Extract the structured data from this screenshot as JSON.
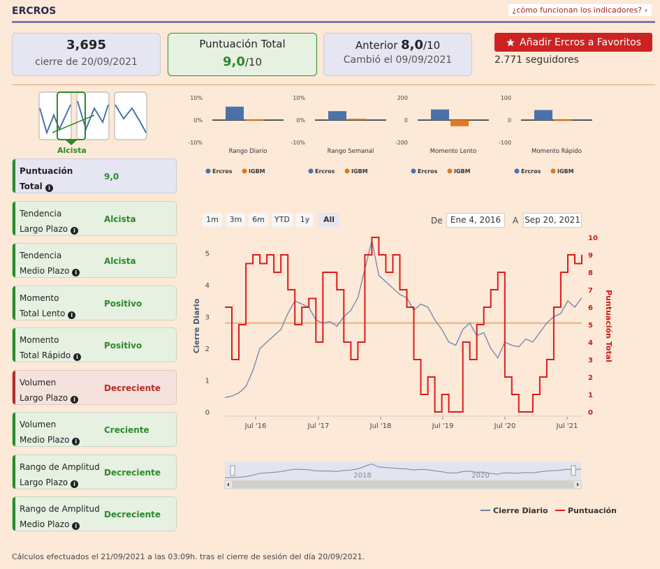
{
  "header": {
    "title": "ERCROS",
    "help_link": "¿cómo funcionan los indicadores? ›"
  },
  "cards": {
    "price": {
      "value": "3,695",
      "sub": "cierre de 20/09/2021"
    },
    "total": {
      "label": "Puntuación Total",
      "score": "9,0",
      "den": "/10"
    },
    "previous": {
      "label": "Anterior ",
      "score": "8,0",
      "den": "/10",
      "sub": "Cambió el 09/09/2021"
    }
  },
  "favorite": {
    "label": "Añadir Ercros a Favoritos",
    "icon": "star-icon",
    "followers": "2.771 seguidores"
  },
  "trend_thumbnail": {
    "label": "Alcista",
    "color": "#2a8a2a"
  },
  "indicators": [
    {
      "line1": "Puntuación",
      "line2": "Total",
      "value": "9,0",
      "style": "total"
    },
    {
      "line1": "Tendencia",
      "line2": "Largo Plazo",
      "value": "Alcista",
      "style": "green"
    },
    {
      "line1": "Tendencia",
      "line2": "Medio Plazo",
      "value": "Alcista",
      "style": "green"
    },
    {
      "line1": "Momento",
      "line2": "Total Lento",
      "value": "Positivo",
      "style": "green"
    },
    {
      "line1": "Momento",
      "line2": "Total Rápido",
      "value": "Positivo",
      "style": "green"
    },
    {
      "line1": "Volumen",
      "line2": "Largo Plazo",
      "value": "Decreciente",
      "style": "red"
    },
    {
      "line1": "Volumen",
      "line2": "Medio Plazo",
      "value": "Creciente",
      "style": "green"
    },
    {
      "line1": "Rango de Amplitud",
      "line2": "Largo Plazo",
      "value": "Decreciente",
      "style": "green"
    },
    {
      "line1": "Rango de Amplitud",
      "line2": "Medio Plazo",
      "value": "Decreciente",
      "style": "green"
    }
  ],
  "chart_data": [
    {
      "type": "bar",
      "title": "Rango Diario",
      "ticks": [
        "10%",
        "0%",
        "-10%"
      ],
      "ylim": [
        -10,
        10
      ],
      "series": [
        {
          "name": "Ercros",
          "values": [
            6
          ],
          "color": "#4a72a8"
        },
        {
          "name": "IGBM",
          "values": [
            0.2
          ],
          "color": "#e07820"
        }
      ]
    },
    {
      "type": "bar",
      "title": "Rango Semanal",
      "ticks": [
        "10%",
        "0%",
        "-10%"
      ],
      "ylim": [
        -10,
        10
      ],
      "series": [
        {
          "name": "Ercros",
          "values": [
            4
          ],
          "color": "#4a72a8"
        },
        {
          "name": "IGBM",
          "values": [
            0.6
          ],
          "color": "#e07820"
        }
      ]
    },
    {
      "type": "bar",
      "title": "Momento Lento",
      "ticks": [
        "200",
        "0",
        "-200"
      ],
      "ylim": [
        -200,
        200
      ],
      "series": [
        {
          "name": "Ercros",
          "values": [
            95
          ],
          "color": "#4a72a8"
        },
        {
          "name": "IGBM",
          "values": [
            -55
          ],
          "color": "#e07820"
        }
      ]
    },
    {
      "type": "bar",
      "title": "Momento Rápido",
      "ticks": [
        "100",
        "0",
        "-100"
      ],
      "ylim": [
        -100,
        100
      ],
      "series": [
        {
          "name": "Ercros",
          "values": [
            45
          ],
          "color": "#4a72a8"
        },
        {
          "name": "IGBM",
          "values": [
            1
          ],
          "color": "#e07820"
        }
      ]
    },
    {
      "type": "line",
      "x_ticks": [
        "Jul '16",
        "Jul '17",
        "Jul '18",
        "Jul '19",
        "Jul '20",
        "Jul '21"
      ],
      "ylabel": "Cierre Diario",
      "y2label": "Puntuación Total",
      "ylim": [
        0,
        5.5
      ],
      "y2lim": [
        0,
        10
      ],
      "y_ticks": [
        "0",
        "1",
        "2",
        "3",
        "4",
        "5"
      ],
      "y2_ticks": [
        "0",
        "1",
        "2",
        "3",
        "4",
        "5",
        "6",
        "7",
        "8",
        "9",
        "10"
      ],
      "reference_line": 2.8,
      "navigator_ticks": [
        "2018",
        "2020"
      ],
      "series": [
        {
          "name": "Cierre Diario",
          "color": "#6b84ab",
          "values": [
            0.45,
            0.5,
            0.6,
            0.8,
            1.3,
            2.0,
            2.2,
            2.4,
            2.6,
            3.1,
            3.5,
            3.4,
            3.3,
            2.9,
            2.8,
            2.85,
            2.7,
            3.0,
            3.2,
            3.6,
            4.5,
            5.4,
            4.3,
            4.1,
            3.9,
            3.7,
            3.6,
            3.2,
            3.4,
            3.3,
            2.9,
            2.6,
            2.2,
            2.1,
            2.6,
            2.8,
            2.4,
            2.5,
            2.0,
            1.7,
            2.2,
            2.1,
            2.05,
            2.3,
            2.2,
            2.5,
            2.8,
            3.0,
            3.1,
            3.5,
            3.3,
            3.6
          ]
        },
        {
          "name": "Puntuación",
          "color": "#dd1a1a",
          "values": [
            6,
            3,
            5,
            8.5,
            9,
            8.5,
            9,
            8,
            9,
            7,
            5,
            6,
            6.5,
            4,
            8,
            8,
            7,
            4,
            3,
            4,
            9,
            10,
            9,
            8,
            9,
            7,
            6,
            3,
            1,
            2,
            0,
            1,
            0,
            0,
            4,
            3,
            5,
            6,
            7,
            8,
            2,
            1,
            0,
            0,
            1,
            2,
            3,
            6,
            8,
            9,
            8.5,
            9
          ]
        }
      ],
      "legend": "bottom-right"
    }
  ],
  "range_selector": {
    "buttons": [
      "1m",
      "3m",
      "6m",
      "YTD",
      "1y",
      "All"
    ],
    "active": "All",
    "from_label": "De",
    "from_value": "Ene 4, 2016",
    "to_label": "A",
    "to_value": "Sep 20, 2021"
  },
  "footer": "Cálculos efectuados el 21/09/2021 a las 03:09h. tras el cierre de sesión del día 20/09/2021."
}
